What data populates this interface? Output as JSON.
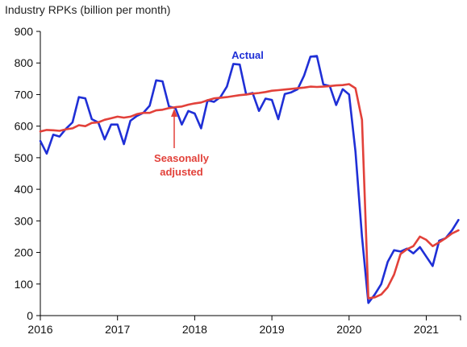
{
  "chart_data": {
    "type": "line",
    "title": "",
    "xlabel": "",
    "ylabel": "Industry RPKs (billion per month)",
    "ylim": [
      0,
      900
    ],
    "xlim": [
      2016.0,
      2021.5
    ],
    "y_ticks": [
      0,
      100,
      200,
      300,
      400,
      500,
      600,
      700,
      800,
      900
    ],
    "x_ticks": [
      2016,
      2017,
      2018,
      2019,
      2020,
      2021
    ],
    "x_tick_labels": [
      "2016",
      "2017",
      "2018",
      "2019",
      "2020",
      "2021"
    ],
    "grid": false,
    "legend": "inline annotations",
    "colors": {
      "actual": "#1f2fd6",
      "seasonally_adjusted": "#e2413a",
      "axis": "#000000"
    },
    "series": [
      {
        "name": "Actual",
        "color": "#1f2fd6",
        "x": [
          2016.0,
          2016.083,
          2016.167,
          2016.25,
          2016.333,
          2016.417,
          2016.5,
          2016.583,
          2016.667,
          2016.75,
          2016.833,
          2016.917,
          2017.0,
          2017.083,
          2017.167,
          2017.25,
          2017.333,
          2017.417,
          2017.5,
          2017.583,
          2017.667,
          2017.75,
          2017.833,
          2017.917,
          2018.0,
          2018.083,
          2018.167,
          2018.25,
          2018.333,
          2018.417,
          2018.5,
          2018.583,
          2018.667,
          2018.75,
          2018.833,
          2018.917,
          2019.0,
          2019.083,
          2019.167,
          2019.25,
          2019.333,
          2019.417,
          2019.5,
          2019.583,
          2019.667,
          2019.75,
          2019.833,
          2019.917,
          2020.0,
          2020.083,
          2020.167,
          2020.25,
          2020.333,
          2020.417,
          2020.5,
          2020.583,
          2020.667,
          2020.75,
          2020.833,
          2020.917,
          2021.0,
          2021.083,
          2021.167,
          2021.25,
          2021.333,
          2021.417
        ],
        "values": [
          553,
          513,
          573,
          567,
          592,
          612,
          692,
          688,
          622,
          612,
          558,
          605,
          605,
          543,
          617,
          632,
          642,
          665,
          745,
          742,
          662,
          657,
          605,
          648,
          640,
          593,
          682,
          677,
          692,
          725,
          797,
          795,
          700,
          705,
          648,
          687,
          683,
          622,
          702,
          707,
          717,
          760,
          820,
          822,
          732,
          727,
          667,
          717,
          700,
          520,
          250,
          40,
          67,
          100,
          170,
          207,
          203,
          212,
          197,
          217,
          187,
          157,
          237,
          245,
          270,
          303
        ]
      },
      {
        "name": "Seasonally adjusted",
        "color": "#e2413a",
        "x": [
          2016.0,
          2016.083,
          2016.167,
          2016.25,
          2016.333,
          2016.417,
          2016.5,
          2016.583,
          2016.667,
          2016.75,
          2016.833,
          2016.917,
          2017.0,
          2017.083,
          2017.167,
          2017.25,
          2017.333,
          2017.417,
          2017.5,
          2017.583,
          2017.667,
          2017.75,
          2017.833,
          2017.917,
          2018.0,
          2018.083,
          2018.167,
          2018.25,
          2018.333,
          2018.417,
          2018.5,
          2018.583,
          2018.667,
          2018.75,
          2018.833,
          2018.917,
          2019.0,
          2019.083,
          2019.167,
          2019.25,
          2019.333,
          2019.417,
          2019.5,
          2019.583,
          2019.667,
          2019.75,
          2019.833,
          2019.917,
          2020.0,
          2020.083,
          2020.167,
          2020.25,
          2020.333,
          2020.417,
          2020.5,
          2020.583,
          2020.667,
          2020.75,
          2020.833,
          2020.917,
          2021.0,
          2021.083,
          2021.167,
          2021.25,
          2021.333,
          2021.417
        ],
        "values": [
          583,
          588,
          587,
          585,
          590,
          593,
          603,
          600,
          610,
          612,
          620,
          625,
          630,
          627,
          630,
          638,
          642,
          642,
          650,
          652,
          657,
          660,
          662,
          668,
          672,
          675,
          682,
          688,
          690,
          692,
          695,
          698,
          700,
          703,
          705,
          708,
          712,
          714,
          716,
          718,
          720,
          722,
          725,
          724,
          725,
          727,
          729,
          730,
          733,
          720,
          620,
          55,
          58,
          67,
          90,
          130,
          195,
          210,
          220,
          250,
          240,
          220,
          232,
          245,
          260,
          270
        ]
      }
    ],
    "annotations": [
      {
        "text": "Actual",
        "color": "#1f2fd6"
      },
      {
        "text_lines": [
          "Seasonally",
          "adjusted"
        ],
        "color": "#e2413a"
      }
    ]
  }
}
